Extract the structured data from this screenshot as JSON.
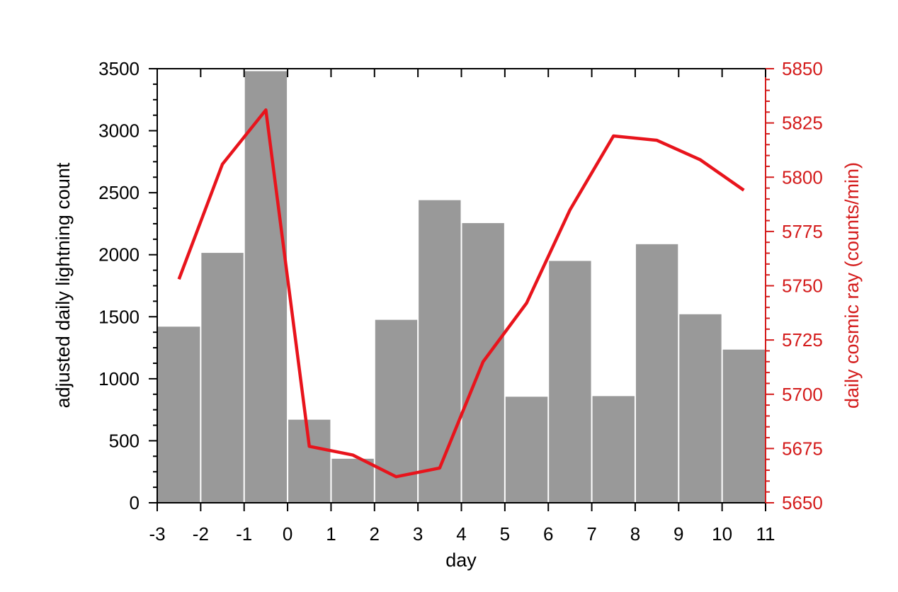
{
  "chart_data": {
    "type": "bar",
    "xlabel": "day",
    "ylabel": "adjusted daily lightning count",
    "y2label": "daily cosmic ray (counts/min)",
    "xlim": [
      -3,
      11
    ],
    "ylim": [
      0,
      3500
    ],
    "y2lim": [
      5650,
      5850
    ],
    "x_ticks": [
      -3,
      -2,
      -1,
      0,
      1,
      2,
      3,
      4,
      5,
      6,
      7,
      8,
      9,
      10,
      11
    ],
    "y_ticks": [
      0,
      500,
      1000,
      1500,
      2000,
      2500,
      3000,
      3500
    ],
    "y2_ticks": [
      5650,
      5675,
      5700,
      5725,
      5750,
      5775,
      5800,
      5825,
      5850
    ],
    "grid": false,
    "colors": {
      "bars": "#999999",
      "line": "#e8141c",
      "right_axis": "#d41c1c"
    },
    "series": [
      {
        "kind": "bar",
        "axis": "left",
        "x": [
          -2.5,
          -1.5,
          -0.5,
          0.5,
          1.5,
          2.5,
          3.5,
          4.5,
          5.5,
          6.5,
          7.5,
          8.5,
          9.5,
          10.5
        ],
        "values": [
          1420,
          2015,
          3480,
          670,
          355,
          1475,
          2440,
          2255,
          855,
          1950,
          860,
          2085,
          1520,
          1235
        ]
      },
      {
        "kind": "line",
        "axis": "right",
        "x": [
          -2.5,
          -1.5,
          -0.5,
          0.5,
          1.5,
          2.5,
          3.5,
          4.5,
          5.5,
          6.5,
          7.5,
          8.5,
          9.5,
          10.5
        ],
        "values": [
          5753,
          5806,
          5831,
          5676,
          5672,
          5662,
          5666,
          5715,
          5742,
          5785,
          5819,
          5817,
          5808,
          5794
        ]
      }
    ]
  }
}
